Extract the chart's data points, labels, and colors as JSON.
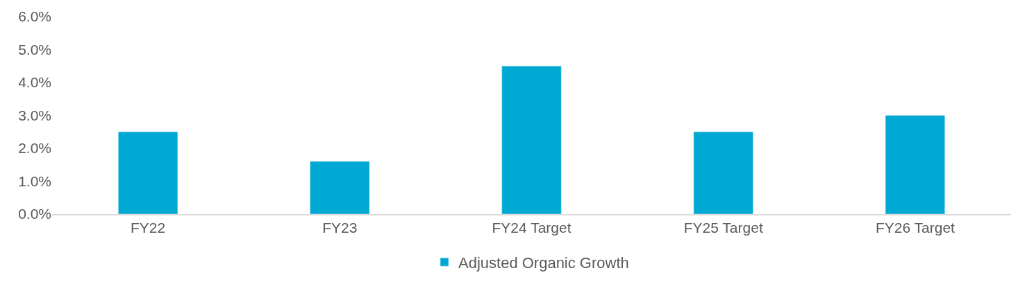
{
  "chart_data": {
    "type": "bar",
    "categories": [
      "FY22",
      "FY23",
      "FY24 Target",
      "FY25 Target",
      "FY26 Target"
    ],
    "series": [
      {
        "name": "Adjusted Organic Growth",
        "color": "#00a9d4",
        "values": [
          2.5,
          1.6,
          4.5,
          2.5,
          3.0
        ]
      }
    ],
    "ylim": [
      0,
      6
    ],
    "yticks": [
      {
        "value": 0,
        "label": "0.0%"
      },
      {
        "value": 1,
        "label": "1.0%"
      },
      {
        "value": 2,
        "label": "2.0%"
      },
      {
        "value": 3,
        "label": "3.0%"
      },
      {
        "value": 4,
        "label": "4.0%"
      },
      {
        "value": 5,
        "label": "5.0%"
      },
      {
        "value": 6,
        "label": "6.0%"
      }
    ],
    "legend": "bottom"
  }
}
